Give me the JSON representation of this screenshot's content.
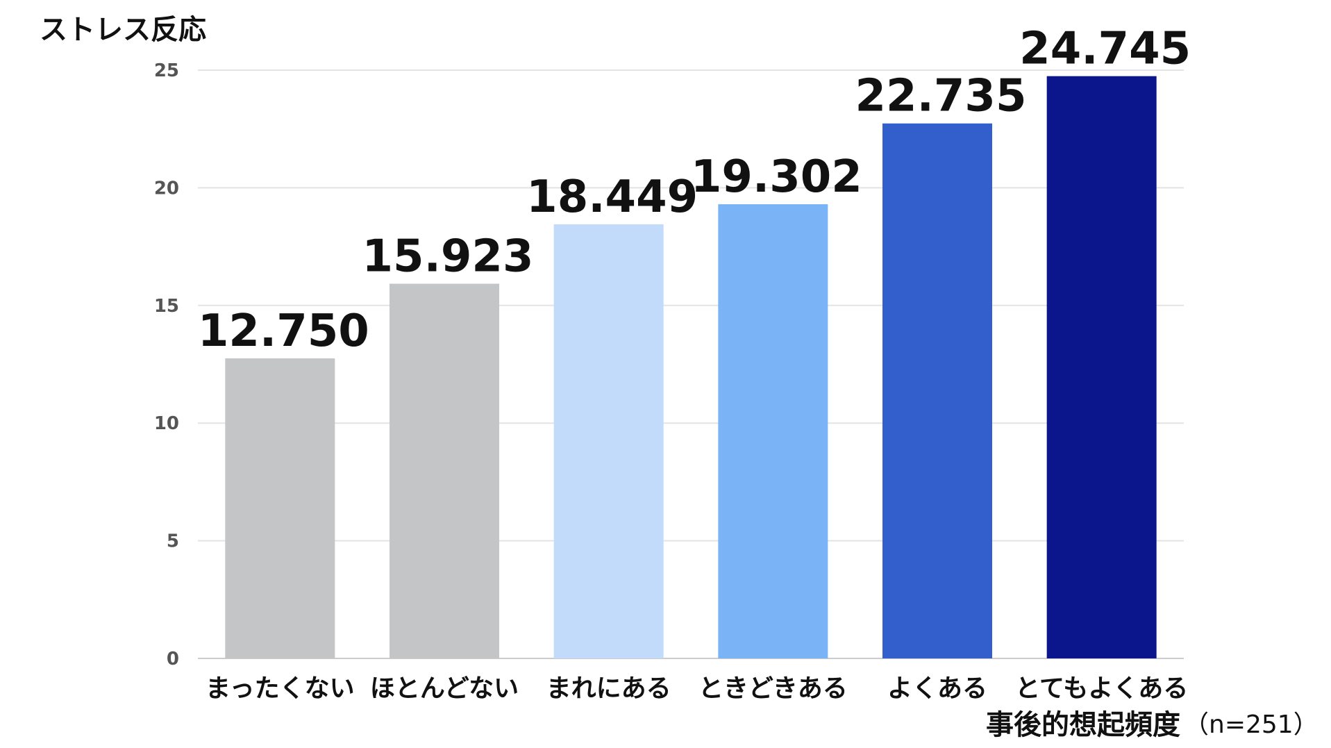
{
  "chart_data": {
    "type": "bar",
    "ylabel": "ストレス反応",
    "xlabel": "事後的想起頻度",
    "sample_note": "（n=251）",
    "categories": [
      "まったくない",
      "ほとんどない",
      "まれにある",
      "ときどきある",
      "よくある",
      "とてもよくある"
    ],
    "values": [
      12.75,
      15.923,
      18.449,
      19.302,
      22.735,
      24.745
    ],
    "value_labels": [
      "12.750",
      "15.923",
      "18.449",
      "19.302",
      "22.735",
      "24.745"
    ],
    "bar_colors": [
      "#c4c5c7",
      "#c4c5c7",
      "#c2dbfa",
      "#7bb4f6",
      "#335fcc",
      "#0b168c"
    ],
    "ylim": [
      0,
      25
    ],
    "yticks": [
      0,
      5,
      10,
      15,
      20,
      25
    ],
    "grid": true,
    "legend": "none"
  }
}
